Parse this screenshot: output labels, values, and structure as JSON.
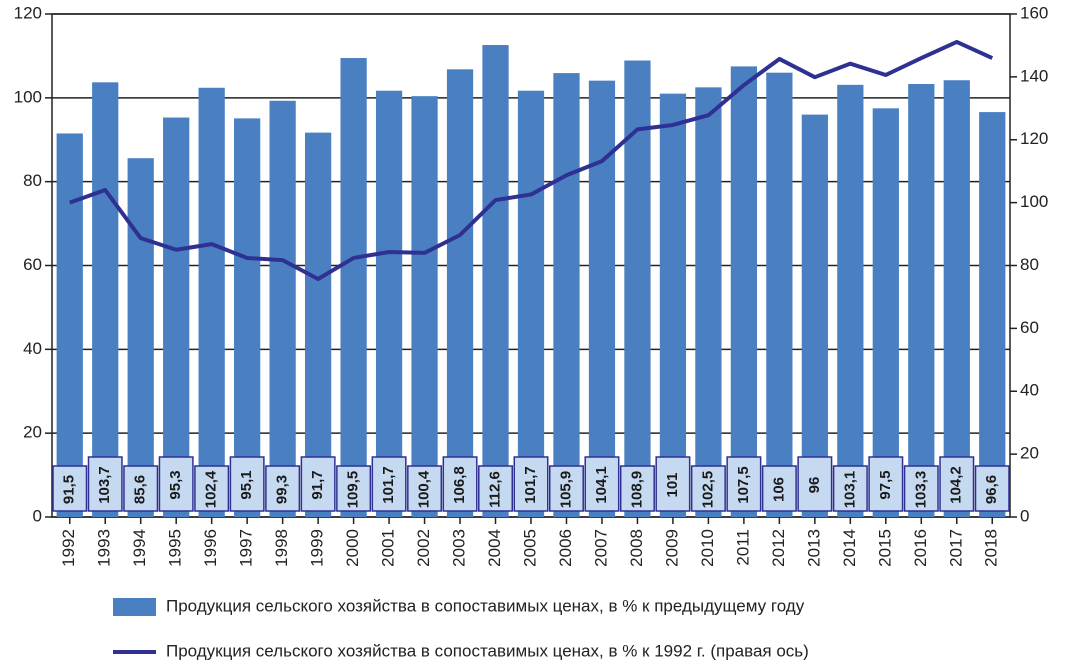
{
  "chart_data": {
    "type": "bar_line",
    "categories": [
      "1992",
      "1993",
      "1994",
      "1995",
      "1996",
      "1997",
      "1998",
      "1999",
      "2000",
      "2001",
      "2002",
      "2003",
      "2004",
      "2005",
      "2006",
      "2007",
      "2008",
      "2009",
      "2010",
      "2011",
      "2012",
      "2013",
      "2014",
      "2015",
      "2016",
      "2017",
      "2018"
    ],
    "series": [
      {
        "name": "Продукция сельского хозяйства в сопоставимых ценах, в % к предыдущему году",
        "type": "bar",
        "color": "#4a80c2",
        "values": [
          91.5,
          103.7,
          85.6,
          95.3,
          102.4,
          95.1,
          99.3,
          91.7,
          109.5,
          101.7,
          100.4,
          106.8,
          112.6,
          101.7,
          105.9,
          104.1,
          108.9,
          101,
          102.5,
          107.5,
          106,
          96,
          103.1,
          97.5,
          103.3,
          104.2,
          96.6
        ],
        "value_labels": [
          "91,5",
          "103,7",
          "85,6",
          "95,3",
          "102,4",
          "95,1",
          "99,3",
          "91,7",
          "109,5",
          "101,7",
          "100,4",
          "106,8",
          "112,6",
          "101,7",
          "105,9",
          "104,1",
          "108,9",
          "101",
          "102,5",
          "107,5",
          "106",
          "96",
          "103,1",
          "97,5",
          "103,3",
          "104,2",
          "96,6"
        ]
      },
      {
        "name": "Продукция сельского хозяйства в сопоставимых ценах, в % к 1992 г. (правая ось)",
        "type": "line",
        "axis": "y2",
        "color": "#2e3192",
        "values": [
          100,
          104,
          88.7,
          85,
          86.8,
          82.4,
          81.7,
          75.7,
          82.4,
          84.3,
          84,
          89.7,
          100.8,
          102.6,
          108.7,
          113.2,
          123.3,
          124.7,
          127.8,
          137.4,
          145.7,
          139.9,
          144.2,
          140.6,
          146,
          151.1,
          146
        ]
      }
    ],
    "ylim": [
      0,
      120
    ],
    "yticks": [
      0,
      20,
      40,
      60,
      80,
      100,
      120
    ],
    "y2lim": [
      0,
      160
    ],
    "y2ticks": [
      0,
      20,
      40,
      60,
      80,
      100,
      120,
      140,
      160
    ],
    "grid": true
  }
}
